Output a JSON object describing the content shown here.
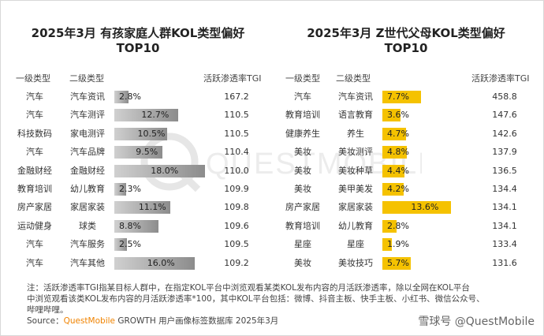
{
  "watermark": "QUESTMOBILE",
  "chart_data": [
    {
      "type": "bar",
      "title": "2025年3月 有孩家庭人群KOL类型偏好",
      "subtitle": "TOP10",
      "columns": [
        "一级类型",
        "二级类型",
        "活跃渗透率TGI"
      ],
      "bar_color": "#8c8c8c",
      "rows": [
        {
          "primary": "汽车",
          "secondary": "汽车资讯",
          "value": 2.8,
          "label": "2.8%",
          "tgi": "167.2"
        },
        {
          "primary": "汽车",
          "secondary": "汽车测评",
          "value": 12.7,
          "label": "12.7%",
          "tgi": "110.5"
        },
        {
          "primary": "科技数码",
          "secondary": "家电测评",
          "value": 10.5,
          "label": "10.5%",
          "tgi": "110.5"
        },
        {
          "primary": "汽车",
          "secondary": "汽车品牌",
          "value": 9.5,
          "label": "9.5%",
          "tgi": "110.4"
        },
        {
          "primary": "金融财经",
          "secondary": "金融财经",
          "value": 18.0,
          "label": "18.0%",
          "tgi": "110.0"
        },
        {
          "primary": "教育培训",
          "secondary": "幼儿教育",
          "value": 2.3,
          "label": "2.3%",
          "tgi": "109.9"
        },
        {
          "primary": "房产家居",
          "secondary": "家居家装",
          "value": 11.1,
          "label": "11.1%",
          "tgi": "109.8"
        },
        {
          "primary": "运动健身",
          "secondary": "球类",
          "value": 8.8,
          "label": "8.8%",
          "tgi": "109.6"
        },
        {
          "primary": "汽车",
          "secondary": "汽车服务",
          "value": 2.5,
          "label": "2.5%",
          "tgi": "109.5"
        },
        {
          "primary": "汽车",
          "secondary": "汽车其他",
          "value": 16.0,
          "label": "16.0%",
          "tgi": "109.2"
        }
      ]
    },
    {
      "type": "bar",
      "title": "2025年3月 Z世代父母KOL类型偏好",
      "subtitle": "TOP10",
      "columns": [
        "一级类型",
        "二级类型",
        "活跃渗透率TGI"
      ],
      "bar_color": "#f5c200",
      "rows": [
        {
          "primary": "汽车",
          "secondary": "汽车资讯",
          "value": 7.7,
          "label": "7.7%",
          "tgi": "458.8"
        },
        {
          "primary": "教育培训",
          "secondary": "语言教育",
          "value": 3.6,
          "label": "3.6%",
          "tgi": "147.6"
        },
        {
          "primary": "健康养生",
          "secondary": "养生",
          "value": 4.7,
          "label": "4.7%",
          "tgi": "142.6"
        },
        {
          "primary": "美妆",
          "secondary": "美妆测评",
          "value": 4.8,
          "label": "4.8%",
          "tgi": "137.9"
        },
        {
          "primary": "美妆",
          "secondary": "美妆种草",
          "value": 4.4,
          "label": "4.4%",
          "tgi": "136.5"
        },
        {
          "primary": "美妆",
          "secondary": "美甲美发",
          "value": 4.2,
          "label": "4.2%",
          "tgi": "134.4"
        },
        {
          "primary": "房产家居",
          "secondary": "家居家装",
          "value": 13.6,
          "label": "13.6%",
          "tgi": "134.1"
        },
        {
          "primary": "教育培训",
          "secondary": "幼儿教育",
          "value": 2.8,
          "label": "2.8%",
          "tgi": "134.1"
        },
        {
          "primary": "星座",
          "secondary": "星座",
          "value": 1.9,
          "label": "1.9%",
          "tgi": "133.4"
        },
        {
          "primary": "美妆",
          "secondary": "美妆技巧",
          "value": 5.7,
          "label": "5.7%",
          "tgi": "131.6"
        }
      ]
    }
  ],
  "footnote": {
    "line1": "注：活跃渗透率TGI指某目标人群中，在指定KOL平台中浏览观看某类KOL发布内容的月活跃渗透率，除以全网在KOL平台",
    "line2": "中浏览观看该类KOL发布内容的月活跃渗透率*100，其中KOL平台包括：微博、抖音主板、快手主板、小红书、微信公众号、",
    "line3": "哔哩哔哩。",
    "source_prefix": "Source：",
    "source_brand": "QuestMobile",
    "source_rest": " GROWTH 用户画像标签数据库 2025年3月"
  },
  "corner_watermark": "雪球号 @QuestMobile"
}
